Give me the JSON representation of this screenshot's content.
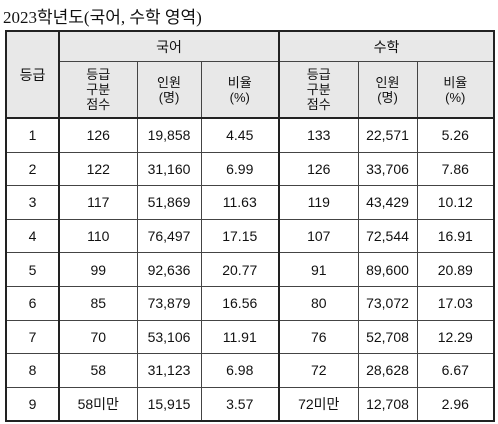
{
  "title": "2023학년도(국어, 수학 영역)",
  "table": {
    "grade_header": "등급",
    "groups": [
      "국어",
      "수학"
    ],
    "subheaders": [
      [
        "등급",
        "구분",
        "점수"
      ],
      [
        "인원",
        "(명)"
      ],
      [
        "비율",
        "(%)"
      ],
      [
        "등급",
        "구분",
        "점수"
      ],
      [
        "인원",
        "(명)"
      ],
      [
        "비율",
        "(%)"
      ]
    ],
    "rows": [
      [
        "1",
        "126",
        "19,858",
        "4.45",
        "133",
        "22,571",
        "5.26"
      ],
      [
        "2",
        "122",
        "31,160",
        "6.99",
        "126",
        "33,706",
        "7.86"
      ],
      [
        "3",
        "117",
        "51,869",
        "11.63",
        "119",
        "43,429",
        "10.12"
      ],
      [
        "4",
        "110",
        "76,497",
        "17.15",
        "107",
        "72,544",
        "16.91"
      ],
      [
        "5",
        "99",
        "92,636",
        "20.77",
        "91",
        "89,600",
        "20.89"
      ],
      [
        "6",
        "85",
        "73,879",
        "16.56",
        "80",
        "73,072",
        "17.03"
      ],
      [
        "7",
        "70",
        "53,106",
        "11.91",
        "76",
        "52,708",
        "12.29"
      ],
      [
        "8",
        "58",
        "31,123",
        "6.98",
        "72",
        "28,628",
        "6.67"
      ],
      [
        "9",
        "58미만",
        "15,915",
        "3.57",
        "72미만",
        "12,708",
        "2.96"
      ]
    ]
  }
}
